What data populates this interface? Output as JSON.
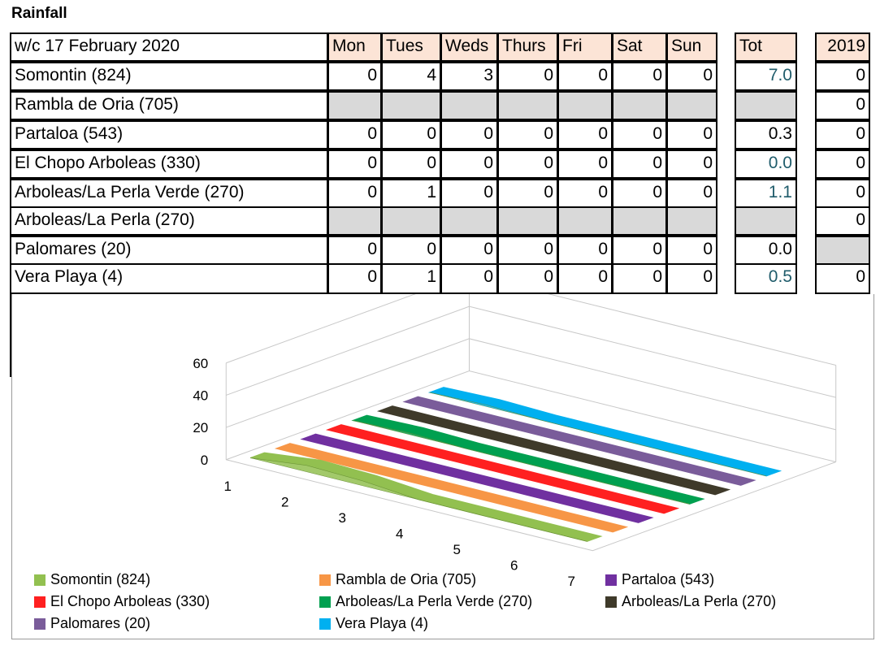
{
  "title": "Rainfall",
  "table": {
    "week_label": "w/c 17 February 2020",
    "days": [
      "Mon",
      "Tues",
      "Weds",
      "Thurs",
      "Fri",
      "Sat",
      "Sun"
    ],
    "tot_label": "Tot",
    "prev_label": "2019",
    "rows": [
      {
        "name": "Somontin (824)",
        "vals": [
          "0",
          "4",
          "3",
          "0",
          "0",
          "0",
          "0"
        ],
        "tot": "7.0",
        "prev": "0"
      },
      {
        "name": "Rambla de Oria (705)",
        "vals": [
          "",
          "",
          "",
          "",
          "",
          "",
          ""
        ],
        "tot": "",
        "prev": "0"
      },
      {
        "name": "Partaloa (543)",
        "vals": [
          "0",
          "0",
          "0",
          "0",
          "0",
          "0",
          "0"
        ],
        "tot": "0.3",
        "prev": "0"
      },
      {
        "name": "El Chopo Arboleas (330)",
        "vals": [
          "0",
          "0",
          "0",
          "0",
          "0",
          "0",
          "0"
        ],
        "tot": "0.0",
        "prev": "0"
      },
      {
        "name": "Arboleas/La Perla Verde (270)",
        "vals": [
          "0",
          "1",
          "0",
          "0",
          "0",
          "0",
          "0"
        ],
        "tot": "1.1",
        "prev": "0"
      },
      {
        "name": "Arboleas/La Perla (270)",
        "vals": [
          "",
          "",
          "",
          "",
          "",
          "",
          ""
        ],
        "tot": "",
        "prev": "0"
      },
      {
        "name": "Palomares (20)",
        "vals": [
          "0",
          "0",
          "0",
          "0",
          "0",
          "0",
          "0"
        ],
        "tot": "0.0",
        "prev": ""
      },
      {
        "name": "Vera Playa (4)",
        "vals": [
          "0",
          "1",
          "0",
          "0",
          "0",
          "0",
          "0"
        ],
        "tot": "0.5",
        "prev": "0"
      }
    ]
  },
  "chart_data": {
    "type": "area",
    "x": [
      1,
      2,
      3,
      4,
      5,
      6,
      7
    ],
    "ylim": [
      0,
      60
    ],
    "yticks": [
      "0",
      "20",
      "40",
      "60"
    ],
    "series": [
      {
        "name": "Somontin (824)",
        "color": "#92c050",
        "values": [
          0,
          4,
          3,
          0,
          0,
          0,
          0
        ]
      },
      {
        "name": "Rambla de Oria (705)",
        "color": "#f79646",
        "values": [
          0,
          0,
          0,
          0,
          0,
          0,
          0
        ]
      },
      {
        "name": "Partaloa (543)",
        "color": "#7030a0",
        "values": [
          0,
          0,
          0,
          0,
          0,
          0,
          0
        ]
      },
      {
        "name": "El Chopo Arboleas (330)",
        "color": "#ff2020",
        "values": [
          0,
          0,
          0,
          0,
          0,
          0,
          0
        ]
      },
      {
        "name": "Arboleas/La Perla Verde (270)",
        "color": "#00a050",
        "values": [
          0,
          1,
          0,
          0,
          0,
          0,
          0
        ]
      },
      {
        "name": "Arboleas/La Perla (270)",
        "color": "#3f3a2a",
        "values": [
          0,
          0,
          0,
          0,
          0,
          0,
          0
        ]
      },
      {
        "name": "Palomares (20)",
        "color": "#7a5c9a",
        "values": [
          0,
          0,
          0,
          0,
          0,
          0,
          0
        ]
      },
      {
        "name": "Vera Playa (4)",
        "color": "#00b0f0",
        "values": [
          0,
          1,
          0,
          0,
          0,
          0,
          0
        ]
      }
    ],
    "grid": true,
    "legend_position": "bottom"
  }
}
